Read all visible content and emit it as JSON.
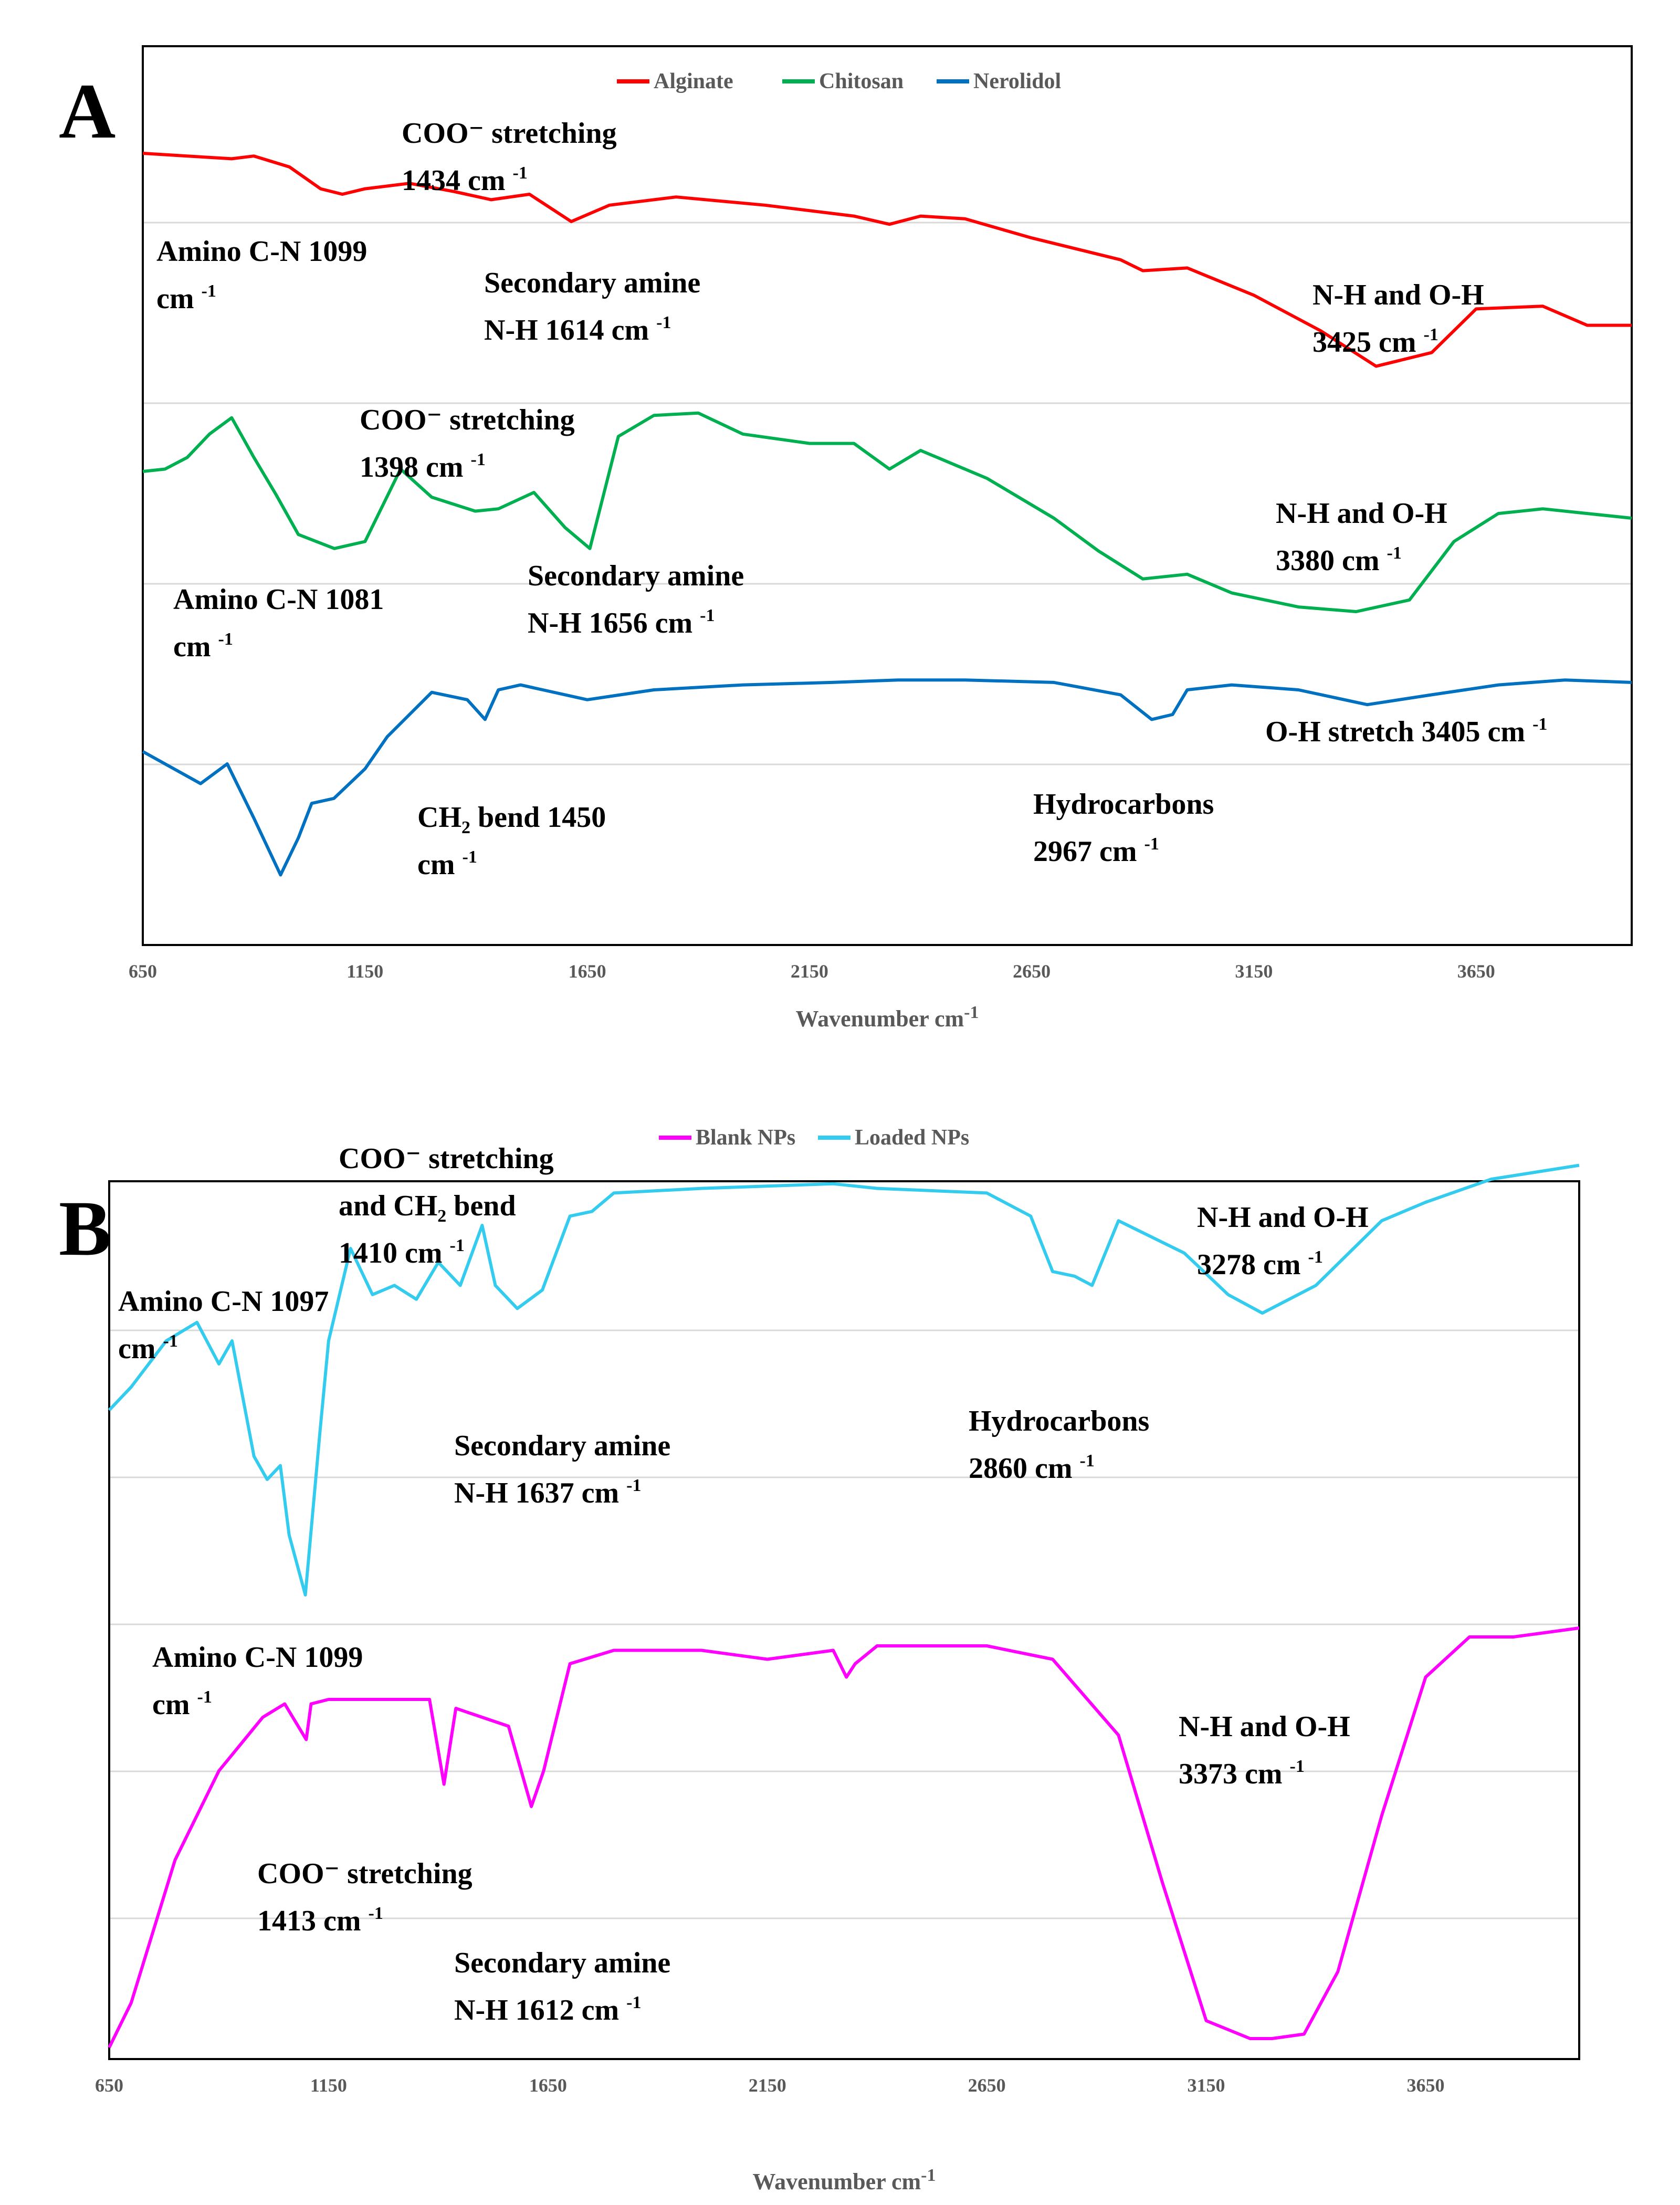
{
  "chart_data": [
    {
      "type": "line",
      "panel_label": "A",
      "xlabel": "Wavenumber cm",
      "xlabel_sup": "-1",
      "ylabel": "",
      "xlim": [
        650,
        4000
      ],
      "xticks": [
        650,
        1150,
        1650,
        2150,
        2650,
        3150,
        3650
      ],
      "grid": "horizontal",
      "legend_position": "top",
      "series": [
        {
          "name": "Alginate",
          "color": "#ff0000",
          "x": [
            650,
            750,
            850,
            900,
            980,
            1050,
            1099,
            1150,
            1250,
            1350,
            1434,
            1520,
            1614,
            1700,
            1850,
            2050,
            2250,
            2330,
            2400,
            2500,
            2650,
            2850,
            2900,
            3000,
            3150,
            3300,
            3425,
            3550,
            3650,
            3800,
            3900,
            4000
          ],
          "y": [
            0.9,
            0.89,
            0.88,
            0.89,
            0.85,
            0.77,
            0.75,
            0.77,
            0.79,
            0.76,
            0.73,
            0.75,
            0.65,
            0.71,
            0.74,
            0.71,
            0.67,
            0.64,
            0.67,
            0.66,
            0.59,
            0.51,
            0.47,
            0.48,
            0.38,
            0.25,
            0.12,
            0.17,
            0.33,
            0.34,
            0.27,
            0.27
          ]
        },
        {
          "name": "Chitosan",
          "color": "#00b050",
          "x": [
            650,
            700,
            750,
            800,
            850,
            900,
            950,
            1000,
            1081,
            1150,
            1230,
            1300,
            1398,
            1450,
            1530,
            1600,
            1656,
            1720,
            1800,
            1900,
            2000,
            2150,
            2250,
            2330,
            2400,
            2550,
            2700,
            2800,
            2900,
            3000,
            3100,
            3250,
            3380,
            3500,
            3600,
            3700,
            3800,
            3900,
            4000
          ],
          "y": [
            0.6,
            0.61,
            0.66,
            0.76,
            0.83,
            0.66,
            0.5,
            0.33,
            0.27,
            0.3,
            0.61,
            0.49,
            0.43,
            0.44,
            0.51,
            0.36,
            0.27,
            0.75,
            0.84,
            0.85,
            0.76,
            0.72,
            0.72,
            0.61,
            0.69,
            0.57,
            0.4,
            0.26,
            0.14,
            0.16,
            0.08,
            0.02,
            0.0,
            0.05,
            0.3,
            0.42,
            0.44,
            0.42,
            0.4
          ]
        },
        {
          "name": "Nerolidol",
          "color": "#0070c0",
          "x": [
            650,
            700,
            780,
            840,
            900,
            960,
            1000,
            1030,
            1080,
            1150,
            1200,
            1300,
            1380,
            1420,
            1450,
            1500,
            1550,
            1650,
            1800,
            2000,
            2200,
            2350,
            2500,
            2700,
            2850,
            2920,
            2967,
            3000,
            3100,
            3250,
            3405,
            3550,
            3700,
            3850,
            4000
          ],
          "y": [
            0.55,
            0.5,
            0.42,
            0.5,
            0.28,
            0.05,
            0.2,
            0.34,
            0.36,
            0.48,
            0.61,
            0.79,
            0.76,
            0.68,
            0.8,
            0.82,
            0.8,
            0.76,
            0.8,
            0.82,
            0.83,
            0.84,
            0.84,
            0.83,
            0.78,
            0.68,
            0.7,
            0.8,
            0.82,
            0.8,
            0.74,
            0.78,
            0.82,
            0.84,
            0.83
          ]
        }
      ],
      "annotations": [
        {
          "lines": [
            "COO⁻ stretching",
            "1434 cm |-1"
          ]
        },
        {
          "lines": [
            "Amino C-N 1099",
            "cm |-1"
          ]
        },
        {
          "lines": [
            "Secondary amine",
            "N-H 1614 cm |-1"
          ]
        },
        {
          "lines": [
            "N-H and O-H",
            "3425 cm |-1"
          ]
        },
        {
          "lines": [
            "COO⁻ stretching",
            "1398 cm |-1"
          ]
        },
        {
          "lines": [
            "N-H and O-H",
            "3380 cm |-1"
          ]
        },
        {
          "lines": [
            "Secondary amine",
            "N-H 1656 cm |-1"
          ]
        },
        {
          "lines": [
            "Amino C-N 1081",
            "cm |-1"
          ]
        },
        {
          "lines": [
            "O-H stretch 3405 cm |-1"
          ]
        },
        {
          "lines": [
            "CH_2 bend 1450",
            "cm |-1"
          ]
        },
        {
          "lines": [
            "Hydrocarbons",
            "2967 cm |-1"
          ]
        }
      ]
    },
    {
      "type": "line",
      "panel_label": "B",
      "xlabel": "Wavenumber cm",
      "xlabel_sup": "-1",
      "ylabel": "",
      "xlim": [
        650,
        4000
      ],
      "xticks": [
        650,
        1150,
        1650,
        2150,
        2650,
        3150,
        3650
      ],
      "grid": "horizontal",
      "legend_position": "top",
      "series": [
        {
          "name": "Blank NPs",
          "color": "#ff00ff",
          "x": [
            650,
            700,
            800,
            900,
            1000,
            1050,
            1099,
            1110,
            1150,
            1250,
            1380,
            1413,
            1440,
            1500,
            1560,
            1612,
            1640,
            1700,
            1800,
            2000,
            2150,
            2300,
            2330,
            2350,
            2400,
            2650,
            2800,
            2950,
            3050,
            3150,
            3250,
            3300,
            3373,
            3450,
            3550,
            3650,
            3750,
            3850,
            4000
          ],
          "y": [
            0.0,
            0.1,
            0.42,
            0.62,
            0.74,
            0.77,
            0.69,
            0.77,
            0.78,
            0.78,
            0.78,
            0.59,
            0.76,
            0.74,
            0.72,
            0.54,
            0.62,
            0.86,
            0.89,
            0.89,
            0.87,
            0.89,
            0.83,
            0.86,
            0.9,
            0.9,
            0.87,
            0.7,
            0.37,
            0.06,
            0.02,
            0.02,
            0.03,
            0.17,
            0.52,
            0.83,
            0.92,
            0.92,
            0.94
          ]
        },
        {
          "name": "Loaded NPs",
          "color": "#33ccee",
          "x": [
            650,
            700,
            780,
            850,
            900,
            930,
            980,
            1010,
            1040,
            1060,
            1097,
            1130,
            1150,
            1200,
            1250,
            1300,
            1350,
            1400,
            1450,
            1500,
            1530,
            1580,
            1637,
            1700,
            1750,
            1800,
            2000,
            2300,
            2400,
            2650,
            2750,
            2800,
            2850,
            2890,
            2950,
            3100,
            3200,
            3278,
            3400,
            3550,
            3650,
            3800,
            4000
          ],
          "y": [
            0.55,
            0.6,
            0.7,
            0.74,
            0.65,
            0.7,
            0.45,
            0.4,
            0.43,
            0.28,
            0.15,
            0.5,
            0.7,
            0.9,
            0.8,
            0.82,
            0.79,
            0.87,
            0.82,
            0.95,
            0.82,
            0.77,
            0.81,
            0.97,
            0.98,
            1.02,
            1.03,
            1.04,
            1.03,
            1.02,
            0.97,
            0.85,
            0.84,
            0.82,
            0.96,
            0.89,
            0.8,
            0.76,
            0.82,
            0.96,
            1.0,
            1.05,
            1.08
          ]
        }
      ],
      "annotations": [
        {
          "lines": [
            "COO⁻ stretching",
            "and CH_2 bend",
            "1410 cm |-1"
          ]
        },
        {
          "lines": [
            "Amino C-N 1097",
            "cm |-1"
          ]
        },
        {
          "lines": [
            "N-H and O-H",
            "3278 cm |-1"
          ]
        },
        {
          "lines": [
            "Secondary amine",
            "N-H 1637 cm |-1"
          ]
        },
        {
          "lines": [
            "Hydrocarbons",
            "2860 cm |-1"
          ]
        },
        {
          "lines": [
            "Amino C-N 1099",
            "cm |-1"
          ]
        },
        {
          "lines": [
            "N-H and O-H",
            "3373 cm |-1"
          ]
        },
        {
          "lines": [
            "COO⁻ stretching",
            "1413 cm |-1"
          ]
        },
        {
          "lines": [
            "Secondary amine",
            "N-H 1612 cm |-1"
          ]
        }
      ]
    }
  ]
}
